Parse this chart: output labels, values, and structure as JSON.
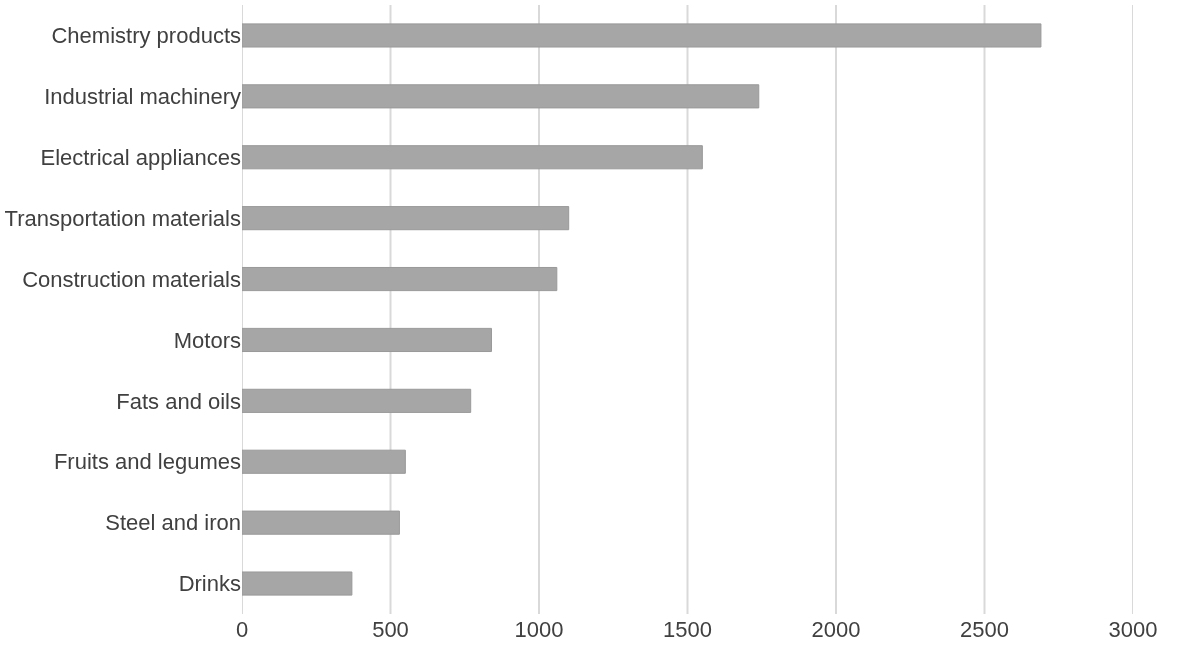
{
  "chart_data": {
    "type": "bar",
    "orientation": "horizontal",
    "categories": [
      "Chemistry products",
      "Industrial machinery",
      "Electrical appliances",
      "Transportation materials",
      "Construction materials",
      "Motors",
      "Fats and oils",
      "Fruits and legumes",
      "Steel and iron",
      "Drinks"
    ],
    "values": [
      2690,
      1740,
      1550,
      1100,
      1060,
      840,
      770,
      550,
      530,
      370
    ],
    "color": "#a6a6a6",
    "xlim": [
      0,
      3000
    ],
    "xticks": [
      0,
      500,
      1000,
      1500,
      2000,
      2500,
      3000
    ],
    "grid": "x"
  }
}
